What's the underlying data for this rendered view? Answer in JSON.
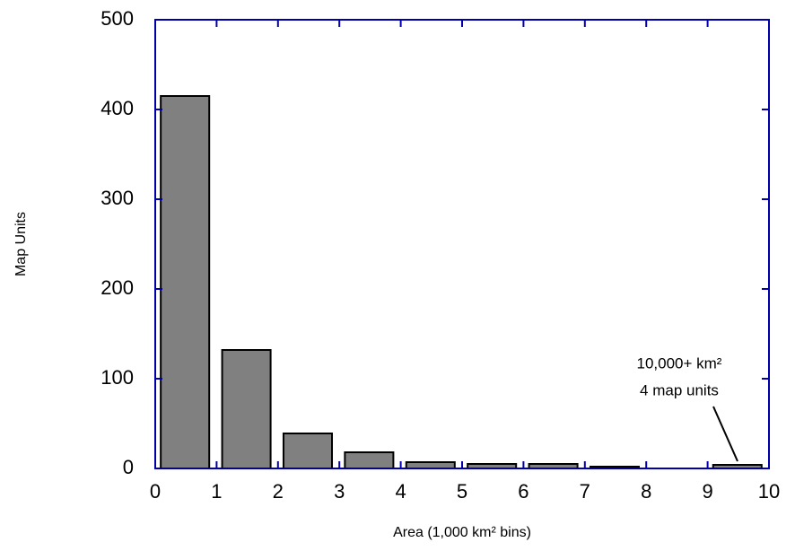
{
  "chart_data": {
    "type": "histogram",
    "xlabel": "Area (1,000 km² bins)",
    "ylabel": "Map Units",
    "bins": [
      0,
      1,
      2,
      3,
      4,
      5,
      6,
      7,
      8,
      9,
      10
    ],
    "counts": [
      415,
      132,
      39,
      18,
      7,
      5,
      5,
      2,
      0,
      4
    ],
    "color": "#808080",
    "frame_color": "#0000aa",
    "xlim": [
      0,
      10
    ],
    "xticks": [
      0,
      1,
      2,
      3,
      4,
      5,
      6,
      7,
      8,
      9,
      10
    ],
    "ylim": [
      0,
      500
    ],
    "yticks": [
      0,
      100,
      200,
      300,
      400,
      500
    ],
    "annotations": [
      "10,000+ km²",
      "4 map units"
    ]
  }
}
